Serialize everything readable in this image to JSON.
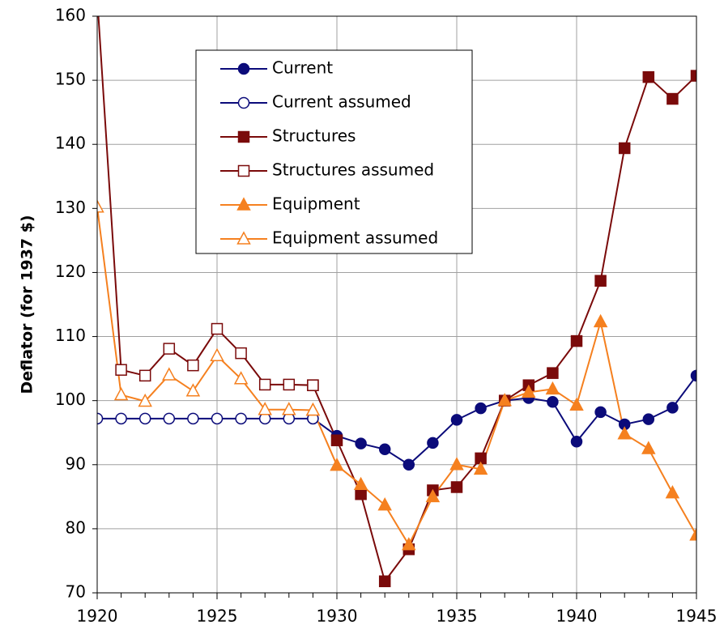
{
  "chart_data": {
    "type": "line",
    "ylabel": "Deflator (for 1937 $)",
    "x": [
      1920,
      1921,
      1922,
      1923,
      1924,
      1925,
      1926,
      1927,
      1928,
      1929,
      1930,
      1931,
      1932,
      1933,
      1934,
      1935,
      1936,
      1937,
      1938,
      1939,
      1940,
      1941,
      1942,
      1943,
      1944,
      1945
    ],
    "xlim": [
      1920,
      1945
    ],
    "xticks": [
      1920,
      1925,
      1930,
      1935,
      1940,
      1945
    ],
    "ylim": [
      70,
      160
    ],
    "yticks": [
      70,
      80,
      90,
      100,
      110,
      120,
      130,
      140,
      150,
      160
    ],
    "grid": true,
    "legend": "top",
    "series": [
      {
        "name": "Current",
        "color": "#0b0b7a",
        "marker": "circle",
        "filled": true,
        "values": [
          null,
          null,
          null,
          null,
          null,
          null,
          null,
          null,
          null,
          97.2,
          94.5,
          93.3,
          92.4,
          90.0,
          93.4,
          97.0,
          98.8,
          100,
          100.4,
          99.8,
          93.6,
          98.2,
          96.3,
          97.1,
          98.9,
          103.9
        ]
      },
      {
        "name": "Current assumed",
        "color": "#0b0b7a",
        "marker": "circle",
        "filled": false,
        "values": [
          97.2,
          97.2,
          97.2,
          97.2,
          97.2,
          97.2,
          97.2,
          97.2,
          97.2,
          97.2,
          null,
          null,
          null,
          null,
          null,
          null,
          null,
          null,
          null,
          null,
          null,
          null,
          null,
          null,
          null,
          null
        ]
      },
      {
        "name": "Structures",
        "color": "#7a0a0a",
        "marker": "square",
        "filled": true,
        "values": [
          null,
          null,
          null,
          null,
          null,
          null,
          null,
          null,
          null,
          102.4,
          93.8,
          85.4,
          71.8,
          76.8,
          86.0,
          86.5,
          91.0,
          100,
          102.4,
          104.3,
          109.3,
          118.7,
          139.4,
          150.5,
          147.1,
          150.7
        ]
      },
      {
        "name": "Structures assumed",
        "color": "#7a0a0a",
        "marker": "square",
        "filled": false,
        "values": [
          163,
          104.8,
          103.9,
          108.1,
          105.5,
          111.2,
          107.4,
          102.5,
          102.5,
          102.4,
          null,
          null,
          null,
          null,
          null,
          null,
          null,
          null,
          null,
          null,
          null,
          null,
          null,
          null,
          null,
          null
        ]
      },
      {
        "name": "Equipment",
        "color": "#f5801f",
        "marker": "triangle",
        "filled": true,
        "values": [
          null,
          null,
          null,
          null,
          null,
          null,
          null,
          null,
          null,
          98.5,
          89.9,
          86.9,
          83.7,
          77.5,
          85.0,
          90.0,
          89.3,
          100,
          101.3,
          101.8,
          99.3,
          112.3,
          94.8,
          92.5,
          85.6,
          79.0
        ]
      },
      {
        "name": "Equipment assumed",
        "color": "#f5801f",
        "marker": "triangle",
        "filled": false,
        "values": [
          130.2,
          100.9,
          99.9,
          104.0,
          101.5,
          107.0,
          103.4,
          98.6,
          98.6,
          98.5,
          null,
          null,
          null,
          null,
          null,
          null,
          null,
          null,
          null,
          null,
          null,
          null,
          null,
          null,
          null,
          null
        ]
      }
    ]
  }
}
